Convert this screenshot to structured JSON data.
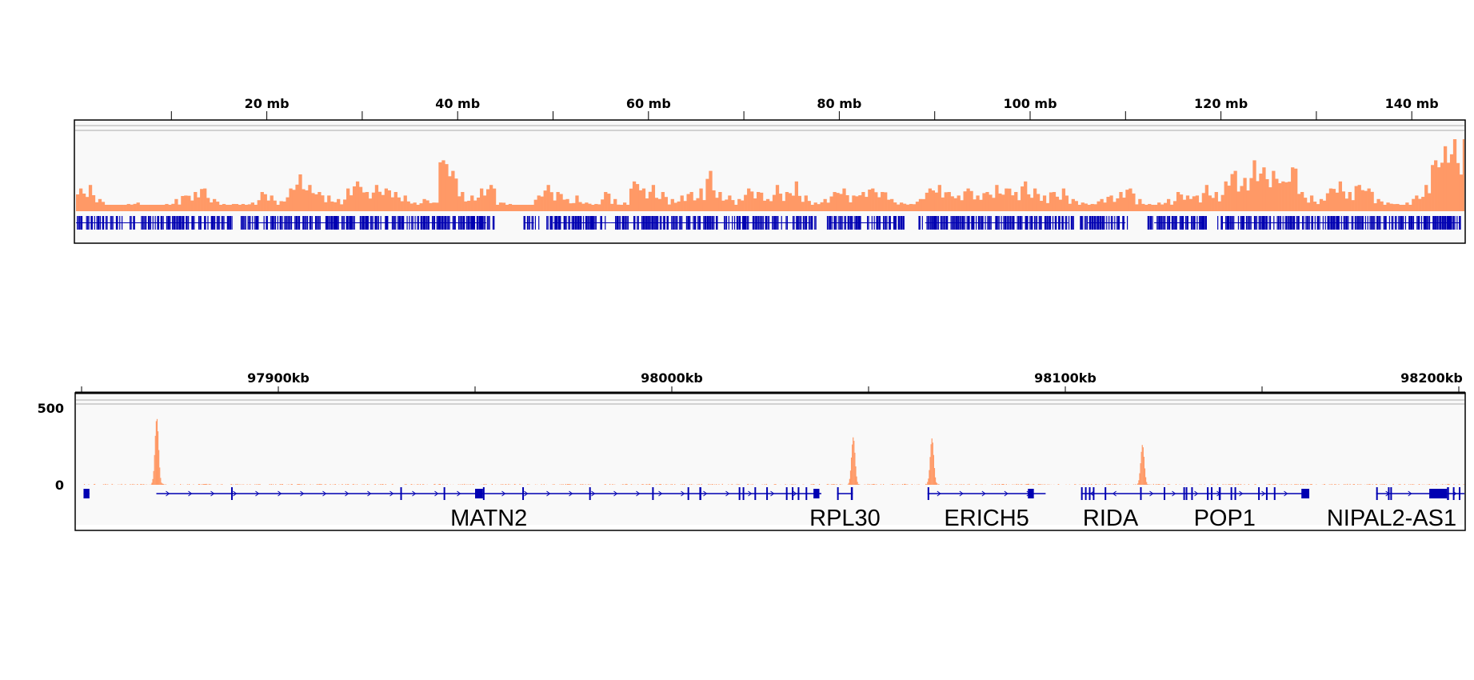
{
  "colors": {
    "coverage": "#FF9966",
    "gene": "#0000B2",
    "panel_bg": "#F9F9F9",
    "border": "#000000"
  },
  "chart_data": [
    {
      "type": "bar",
      "panel": "chromosome-overview",
      "x_unit": "mb",
      "xlim": [
        0,
        145
      ],
      "ruler_labels": [
        {
          "mb": 20,
          "label": "20 mb"
        },
        {
          "mb": 40,
          "label": "40 mb"
        },
        {
          "mb": 60,
          "label": "60 mb"
        },
        {
          "mb": 80,
          "label": "80 mb"
        },
        {
          "mb": 100,
          "label": "100 mb"
        },
        {
          "mb": 120,
          "label": "120 mb"
        },
        {
          "mb": 140,
          "label": "140 mb"
        }
      ],
      "minor_ticks_mb": [
        10,
        30,
        50,
        70,
        90,
        110,
        130
      ],
      "coverage_relative": [
        30,
        35,
        15,
        5,
        5,
        8,
        10,
        5,
        5,
        8,
        15,
        20,
        25,
        30,
        15,
        8,
        8,
        8,
        10,
        25,
        20,
        12,
        30,
        50,
        35,
        25,
        20,
        15,
        30,
        40,
        25,
        35,
        30,
        25,
        20,
        10,
        15,
        10,
        70,
        55,
        25,
        20,
        30,
        35,
        10,
        8,
        5,
        5,
        20,
        35,
        25,
        15,
        20,
        10,
        8,
        25,
        15,
        10,
        40,
        30,
        35,
        25,
        15,
        20,
        25,
        30,
        55,
        25,
        20,
        15,
        30,
        25,
        15,
        35,
        25,
        40,
        20,
        10,
        15,
        25,
        30,
        20,
        25,
        30,
        25,
        15,
        10,
        8,
        15,
        30,
        35,
        25,
        20,
        30,
        20,
        25,
        35,
        30,
        25,
        40,
        30,
        20,
        25,
        30,
        15,
        10,
        8,
        15,
        20,
        25,
        30,
        15,
        8,
        10,
        15,
        25,
        20,
        20,
        35,
        25,
        40,
        55,
        45,
        70,
        60,
        55,
        40,
        60,
        25,
        20,
        15,
        30,
        40,
        25,
        35,
        30,
        15,
        10,
        8,
        10,
        20,
        35,
        70,
        90,
        100,
        100
      ],
      "gene_track_gaps_mb": [
        [
          16.5,
          17.0
        ],
        [
          43.7,
          46.8
        ],
        [
          48.5,
          49.2
        ],
        [
          77.5,
          78.5
        ],
        [
          86.8,
          88.3
        ],
        [
          104.6,
          105.0
        ],
        [
          110.5,
          112.3
        ],
        [
          118.5,
          119.5
        ]
      ]
    },
    {
      "type": "area",
      "panel": "locus-zoom",
      "x_unit": "kb",
      "xlim": [
        97849,
        98203
      ],
      "ylim": [
        0,
        500
      ],
      "y_tick_labels": [
        {
          "value": 500,
          "label": "500"
        },
        {
          "value": 0,
          "label": "0"
        }
      ],
      "ruler_labels": [
        {
          "kb": 97900,
          "label": "97900kb"
        },
        {
          "kb": 98000,
          "label": "98000kb"
        },
        {
          "kb": 98100,
          "label": "98100kb"
        },
        {
          "kb": 98200,
          "label": "98200kb"
        }
      ],
      "minor_ticks_kb": [
        97850,
        97950,
        98050,
        98150
      ],
      "peaks": [
        {
          "kb": 97869,
          "value": 435
        },
        {
          "kb": 98046,
          "value": 310
        },
        {
          "kb": 98066,
          "value": 300
        },
        {
          "kb": 98119.5,
          "value": 260
        }
      ],
      "genes": [
        {
          "name": "",
          "start": 97850.5,
          "end": 97852,
          "strand": "+",
          "exons": [
            [
              97850.5,
              97852
            ]
          ]
        },
        {
          "name": "MATN2",
          "start": 97869,
          "end": 98038,
          "strand": "+",
          "exons": [
            [
              97888,
              97888.4
            ],
            [
              97931,
              97931.4
            ],
            [
              97942,
              97942.3
            ],
            [
              97950,
              97952
            ],
            [
              97952,
              97952.4
            ],
            [
              97962,
              97962.3
            ],
            [
              97979,
              97979.4
            ],
            [
              97995,
              97995.3
            ],
            [
              98004,
              98004.3
            ],
            [
              98007,
              98007.5
            ],
            [
              98017,
              98017.3
            ],
            [
              98018,
              98018.3
            ],
            [
              98021,
              98021.3
            ],
            [
              98024,
              98024.3
            ],
            [
              98029,
              98029.3
            ],
            [
              98030.5,
              98030.8
            ],
            [
              98032,
              98032.3
            ],
            [
              98034,
              98034.3
            ],
            [
              98036,
              98037.5
            ]
          ]
        },
        {
          "name": "RPL30",
          "start": 98042,
          "end": 98046,
          "strand": "+",
          "exons": [
            [
              98042,
              98042.4
            ],
            [
              98045.5,
              98046
            ]
          ]
        },
        {
          "name": "ERICH5",
          "start": 98065,
          "end": 98095,
          "strand": "+",
          "exons": [
            [
              98065,
              98065.3
            ],
            [
              98090.5,
              98092
            ]
          ]
        },
        {
          "name": "RIDA",
          "start": 98104,
          "end": 98119,
          "strand": "-",
          "exons": [
            [
              98104,
              98104.4
            ],
            [
              98105,
              98105.4
            ],
            [
              98106,
              98106.4
            ],
            [
              98107,
              98107.3
            ],
            [
              98110,
              98110.3
            ],
            [
              98119,
              98119.3
            ]
          ]
        },
        {
          "name": "POP1",
          "start": 98119,
          "end": 98162,
          "strand": "+",
          "exons": [
            [
              98125,
              98125.3
            ],
            [
              98130,
              98130.3
            ],
            [
              98130.6,
              98130.9
            ],
            [
              98132,
              98132.3
            ],
            [
              98136,
              98136.3
            ],
            [
              98137,
              98137.3
            ],
            [
              98139,
              98139.5
            ],
            [
              98142,
              98142.3
            ],
            [
              98143,
              98143.3
            ],
            [
              98149,
              98149.3
            ],
            [
              98151,
              98151.3
            ],
            [
              98153,
              98153.3
            ],
            [
              98160,
              98162
            ]
          ]
        },
        {
          "name": "NIPAL2-AS1",
          "start": 98179,
          "end": 98203,
          "strand": "+",
          "exons": [
            [
              98179,
              98179.3
            ],
            [
              98182,
              98182.3
            ],
            [
              98182.6,
              98182.9
            ],
            [
              98192.5,
              98197
            ],
            [
              98197,
              98197.5
            ],
            [
              98198.5,
              98198.8
            ],
            [
              98200,
              98200.3
            ]
          ]
        }
      ]
    }
  ]
}
